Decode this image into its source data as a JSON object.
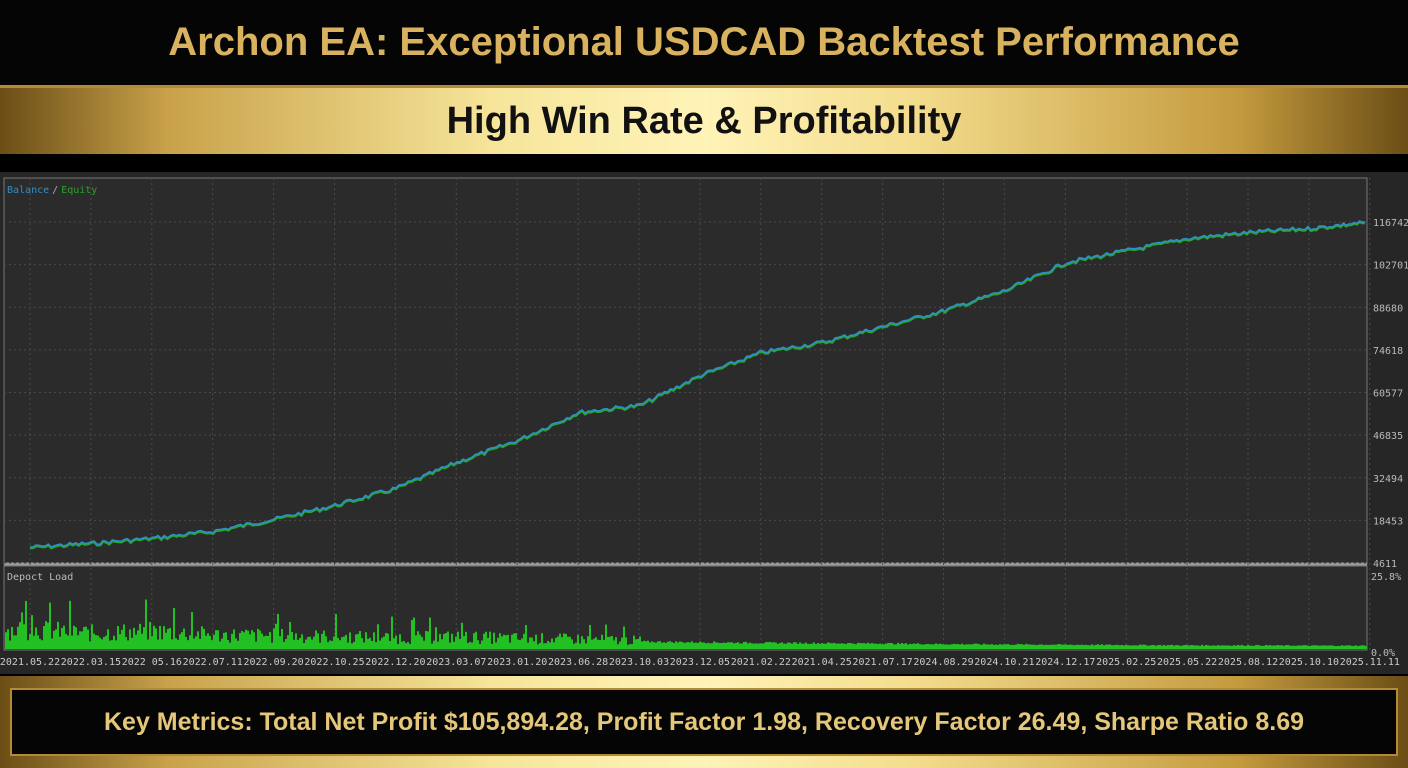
{
  "header": {
    "title": "Archon EA: Exceptional USDCAD Backtest Performance",
    "subtitle": "High Win Rate & Profitability"
  },
  "footer": {
    "text": "Key Metrics: Total Net Profit $105,894.28, Profit Factor 1.98, Recovery Factor 26.49, Sharpe Ratio 8.69"
  },
  "chart_data": [
    {
      "type": "line",
      "legend": [
        "Balance",
        "Equity"
      ],
      "legend_separator": "/",
      "legend_placement": "top-left",
      "colors": {
        "Balance": "#2f8fc8",
        "Equity": "#29a329"
      },
      "y_ticks": [
        "116742",
        "102701",
        "88680",
        "74618",
        "60577",
        "46835",
        "32494",
        "18453",
        "4611"
      ],
      "ylim": [
        4611,
        116742
      ],
      "grid": true,
      "x_ticks": [
        "2021.05.22",
        "2022.03.15",
        "2022 05.16",
        "2022.07.11",
        "2022.09.20",
        "2022.10.25",
        "2022.12.20",
        "2023.03.07",
        "2023.01.20",
        "2023.06.28",
        "2023.10.03",
        "2023.12.05",
        "2021.02.22",
        "2021.04.25",
        "2021.07.17",
        "2024.08.29",
        "2024.10.21",
        "2024.12.17",
        "2025.02.25",
        "2025.05.22",
        "2025.08.12",
        "2025.10.10",
        "2025.11.11"
      ],
      "series": [
        {
          "name": "Balance",
          "values": [
            9872,
            11187,
            12831,
            15133,
            19079,
            23682,
            29271,
            37820,
            45054,
            54263,
            56565,
            66430,
            73993,
            77281,
            82542,
            87803,
            94379,
            103586,
            107532,
            111478,
            113451,
            114766,
            116742
          ]
        }
      ]
    },
    {
      "type": "bar",
      "label": "Depoct Load",
      "color": "#22c022",
      "y_ticks": [
        "25.8%",
        "0.0%"
      ],
      "ylim": [
        0,
        25.8
      ],
      "values": [
        5.5,
        4.5,
        5,
        4,
        3.8,
        3.5,
        3.2,
        3.4,
        3,
        2.8,
        2.4,
        2.2,
        2,
        1.9,
        1.8,
        1.6,
        1.5,
        1.4,
        1.3,
        1.2,
        1.2,
        1.1,
        1.1
      ]
    }
  ]
}
